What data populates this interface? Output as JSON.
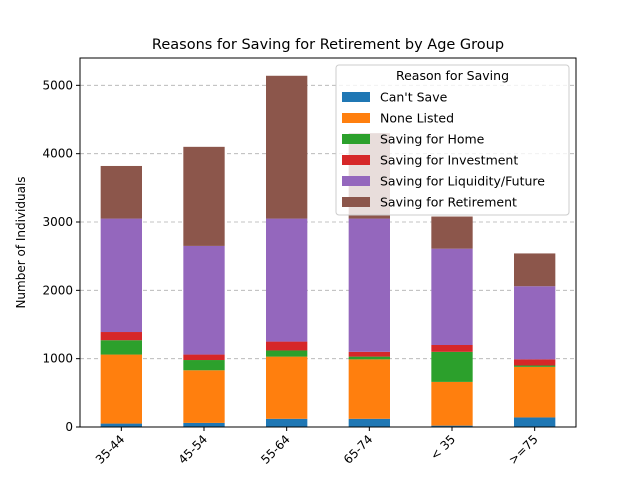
{
  "chart_data": {
    "type": "bar",
    "stacked": true,
    "title": "Reasons for Saving for Retirement by Age Group",
    "xlabel": "",
    "ylabel": "Number of Individuals",
    "ylim": [
      0,
      5400
    ],
    "yticks": [
      0,
      1000,
      2000,
      3000,
      4000,
      5000
    ],
    "grid": "y, dashed",
    "legend_title": "Reason for Saving",
    "legend_position": "top-right",
    "categories": [
      "35-44",
      "45-54",
      "55-64",
      "65-74",
      "< 35",
      ">=75"
    ],
    "series": [
      {
        "name": "Can't Save",
        "color": "#1f77b4",
        "values": [
          50,
          60,
          120,
          120,
          20,
          140
        ]
      },
      {
        "name": "None Listed",
        "color": "#ff7f0e",
        "values": [
          1010,
          770,
          910,
          870,
          640,
          740
        ]
      },
      {
        "name": "Saving for Home",
        "color": "#2ca02c",
        "values": [
          210,
          150,
          90,
          40,
          440,
          20
        ]
      },
      {
        "name": "Saving for Investment",
        "color": "#d62728",
        "values": [
          120,
          80,
          130,
          70,
          100,
          90
        ]
      },
      {
        "name": "Saving for Liquidity/Future",
        "color": "#9467bd",
        "values": [
          1660,
          1590,
          1800,
          1950,
          1410,
          1070
        ]
      },
      {
        "name": "Saving for Retirement",
        "color": "#8c564b",
        "values": [
          770,
          1450,
          2090,
          1250,
          470,
          480
        ]
      }
    ]
  }
}
